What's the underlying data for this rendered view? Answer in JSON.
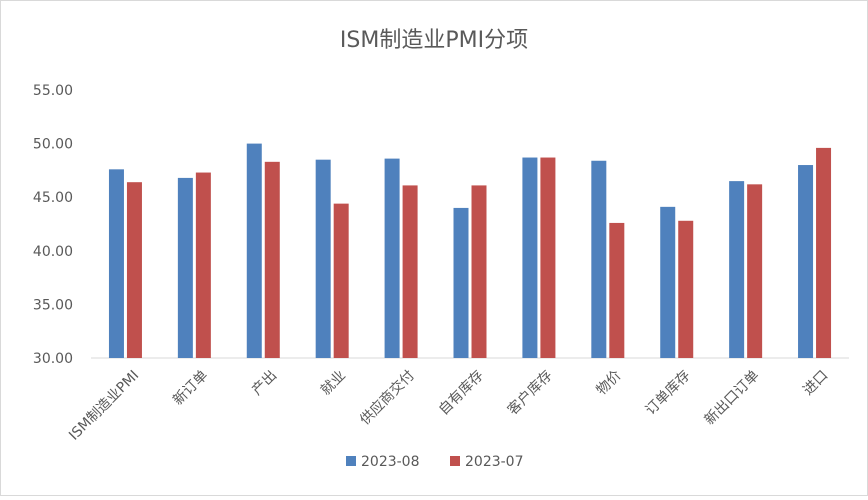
{
  "chart_data": {
    "type": "bar",
    "title": "ISM制造业PMI分项",
    "xlabel": "",
    "ylabel": "",
    "ylim": [
      30,
      55
    ],
    "yticks": [
      "30.00",
      "35.00",
      "40.00",
      "45.00",
      "50.00",
      "55.00"
    ],
    "categories": [
      "ISM制造业PMI",
      "新订单",
      "产出",
      "就业",
      "供应商交付",
      "自有库存",
      "客户库存",
      "物价",
      "订单库存",
      "新出口订单",
      "进口"
    ],
    "series": [
      {
        "name": "2023-08",
        "color": "#4f81bd",
        "values": [
          47.6,
          46.8,
          50.0,
          48.5,
          48.6,
          44.0,
          48.7,
          48.4,
          44.1,
          46.5,
          48.0
        ]
      },
      {
        "name": "2023-07",
        "color": "#c0504d",
        "values": [
          46.4,
          47.3,
          48.3,
          44.4,
          46.1,
          46.1,
          48.7,
          42.6,
          42.8,
          46.2,
          49.6
        ]
      }
    ],
    "grid": false,
    "legend": "bottom"
  }
}
